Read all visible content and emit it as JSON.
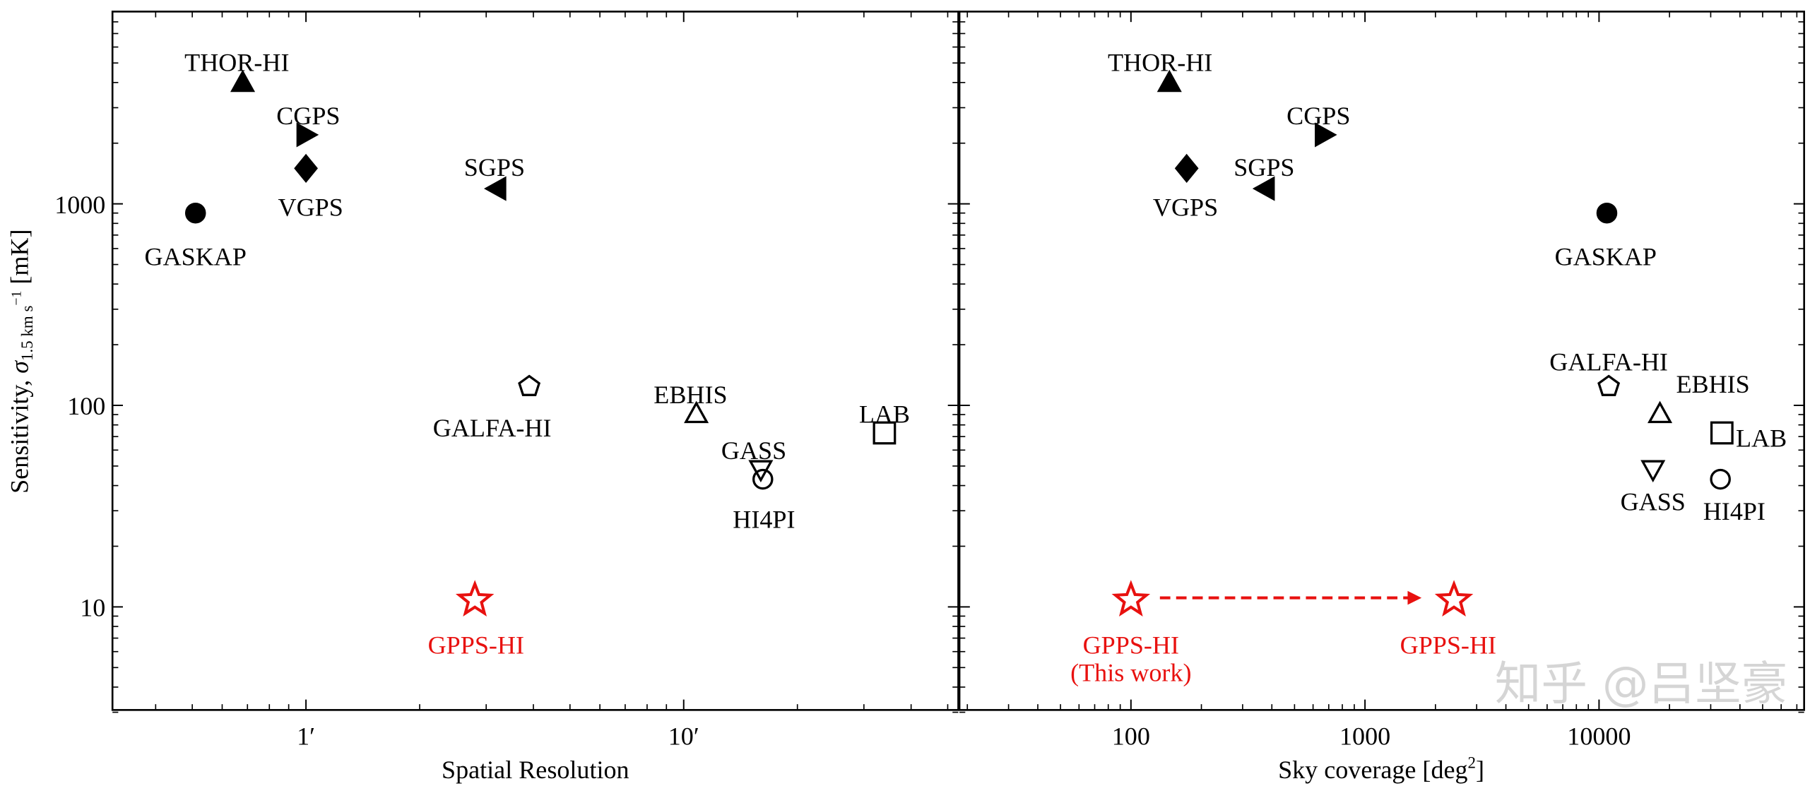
{
  "chart_data": [
    {
      "type": "scatter",
      "panel": "left",
      "xlabel": "Spatial Resolution",
      "ylabel": {
        "main": "Sensitivity, ",
        "sigma": "σ",
        "sub": "1.5 km s",
        "sup": "−1",
        "unit": " [mK]"
      },
      "xscale": "log",
      "yscale": "log",
      "xlim": [
        0.31,
        53
      ],
      "ylim": [
        3,
        9000
      ],
      "x_ticks": [
        {
          "value": 1,
          "label": "1′"
        },
        {
          "value": 10,
          "label": "10′"
        }
      ],
      "y_ticks": [
        {
          "value": 10,
          "label": "10"
        },
        {
          "value": 100,
          "label": "100"
        },
        {
          "value": 1000,
          "label": "1000"
        }
      ],
      "points": [
        {
          "name": "THOR-HI",
          "x": 0.68,
          "y": 4000,
          "marker": "triangle-up-filled",
          "color": "#000000"
        },
        {
          "name": "CGPS",
          "x": 1.0,
          "y": 2200,
          "marker": "triangle-right-filled",
          "color": "#000000"
        },
        {
          "name": "VGPS",
          "x": 1.0,
          "y": 1500,
          "marker": "diamond-filled",
          "color": "#000000"
        },
        {
          "name": "SGPS",
          "x": 3.2,
          "y": 1190,
          "marker": "triangle-left-filled",
          "color": "#000000"
        },
        {
          "name": "GASKAP",
          "x": 0.51,
          "y": 900,
          "marker": "circle-filled",
          "color": "#000000"
        },
        {
          "name": "GALFA-HI",
          "x": 3.9,
          "y": 124,
          "marker": "pentagon-open",
          "color": "#000000"
        },
        {
          "name": "EBHIS",
          "x": 10.8,
          "y": 91,
          "marker": "triangle-up-open",
          "color": "#000000"
        },
        {
          "name": "GASS",
          "x": 16,
          "y": 48,
          "marker": "triangle-down-open",
          "color": "#000000"
        },
        {
          "name": "HI4PI",
          "x": 16.2,
          "y": 43,
          "marker": "circle-open",
          "color": "#000000"
        },
        {
          "name": "LAB",
          "x": 34,
          "y": 73,
          "marker": "square-open",
          "color": "#000000"
        },
        {
          "name": "GPPS-HI",
          "x": 2.8,
          "y": 10.8,
          "marker": "star-open",
          "color": "#e8110f"
        }
      ]
    },
    {
      "type": "scatter",
      "panel": "right",
      "xlabel": {
        "main": "Sky coverage [deg",
        "sup": "2",
        "end": "]"
      },
      "xscale": "log",
      "yscale": "log",
      "xlim": [
        18.5,
        74000
      ],
      "ylim": [
        3,
        9000
      ],
      "x_ticks": [
        {
          "value": 100,
          "label": "100"
        },
        {
          "value": 1000,
          "label": "1000"
        },
        {
          "value": 10000,
          "label": "10000"
        }
      ],
      "points": [
        {
          "name": "THOR-HI",
          "x": 146,
          "y": 4000,
          "marker": "triangle-up-filled",
          "color": "#000000"
        },
        {
          "name": "CGPS",
          "x": 670,
          "y": 2200,
          "marker": "triangle-right-filled",
          "color": "#000000"
        },
        {
          "name": "VGPS",
          "x": 173,
          "y": 1500,
          "marker": "diamond-filled",
          "color": "#000000"
        },
        {
          "name": "SGPS",
          "x": 375,
          "y": 1190,
          "marker": "triangle-left-filled",
          "color": "#000000"
        },
        {
          "name": "GASKAP",
          "x": 10800,
          "y": 900,
          "marker": "circle-filled",
          "color": "#000000"
        },
        {
          "name": "GALFA-HI",
          "x": 11000,
          "y": 124,
          "marker": "pentagon-open",
          "color": "#000000"
        },
        {
          "name": "EBHIS",
          "x": 18200,
          "y": 91,
          "marker": "triangle-up-open",
          "color": "#000000"
        },
        {
          "name": "GASS",
          "x": 17000,
          "y": 48,
          "marker": "triangle-down-open",
          "color": "#000000"
        },
        {
          "name": "HI4PI",
          "x": 33000,
          "y": 43,
          "marker": "circle-open",
          "color": "#000000"
        },
        {
          "name": "LAB",
          "x": 33500,
          "y": 73,
          "marker": "square-open",
          "color": "#000000"
        },
        {
          "name": "GPPS-HI",
          "x": 100,
          "y": 10.8,
          "marker": "star-open",
          "color": "#e8110f",
          "note": "(This work)"
        },
        {
          "name": "GPPS-HI",
          "x": 2400,
          "y": 10.8,
          "marker": "star-open",
          "color": "#e8110f"
        }
      ],
      "annotations": [
        {
          "type": "dashed-arrow",
          "from": [
            100,
            10.8
          ],
          "to": [
            2400,
            10.8
          ],
          "color": "#e8110f"
        }
      ]
    }
  ],
  "watermark": "知乎 @吕坚豪"
}
